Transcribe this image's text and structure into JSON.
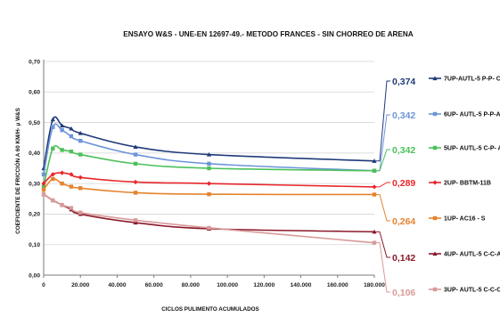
{
  "chart_data": {
    "type": "line",
    "title": "ENSAYO W&S - UNE-EN 12697-49.- METODO FRANCES -  SIN CHORREO DE ARENA",
    "xlabel": "CICLOS PULIMENTO ACUMULADOS",
    "ylabel": "COEFICIENTE DE FRICCIÓN A 60 KM/H- μ W&S",
    "xlim": [
      0,
      180000
    ],
    "ylim": [
      0,
      0.7
    ],
    "x_ticks": [
      0,
      20000,
      40000,
      60000,
      80000,
      100000,
      120000,
      140000,
      160000,
      180000
    ],
    "x_tick_labels": [
      "0",
      "20.000",
      "40.000",
      "60.000",
      "80.000",
      "100.000",
      "120.000",
      "140.000",
      "160.000",
      "180.000"
    ],
    "y_ticks": [
      0,
      0.1,
      0.2,
      0.3,
      0.4,
      0.5,
      0.6,
      0.7
    ],
    "y_tick_labels": [
      "0,00",
      "0,10",
      "0,20",
      "0,30",
      "0,40",
      "0,50",
      "0,60",
      "0,70"
    ],
    "grid": "horizontal",
    "legend_position": "right",
    "series": [
      {
        "name": "7UP-AUTL-5 P-P- C",
        "color": "#1f3a7a",
        "marker": "triangle",
        "end_label": "0,374",
        "points": [
          [
            0,
            0.35
          ],
          [
            5000,
            0.51
          ],
          [
            10000,
            0.49
          ],
          [
            15000,
            0.48
          ],
          [
            20000,
            0.465
          ],
          [
            50000,
            0.42
          ],
          [
            90000,
            0.395
          ],
          [
            180000,
            0.374
          ]
        ]
      },
      {
        "name": "6UP- AUTL-5 P-P-A",
        "color": "#6c95d8",
        "marker": "square",
        "end_label": "0,342",
        "points": [
          [
            0,
            0.33
          ],
          [
            5000,
            0.485
          ],
          [
            10000,
            0.475
          ],
          [
            15000,
            0.455
          ],
          [
            20000,
            0.44
          ],
          [
            50000,
            0.395
          ],
          [
            90000,
            0.365
          ],
          [
            180000,
            0.342
          ]
        ]
      },
      {
        "name": "5UP- AUTL-5 C-P- A",
        "color": "#4cc15a",
        "marker": "square",
        "end_label": "0,342",
        "points": [
          [
            0,
            0.29
          ],
          [
            5000,
            0.415
          ],
          [
            10000,
            0.41
          ],
          [
            15000,
            0.405
          ],
          [
            20000,
            0.395
          ],
          [
            50000,
            0.365
          ],
          [
            90000,
            0.35
          ],
          [
            180000,
            0.342
          ]
        ]
      },
      {
        "name": "2UP- BBTM-11B",
        "color": "#e8262b",
        "marker": "diamond",
        "end_label": "0,289",
        "points": [
          [
            0,
            0.3
          ],
          [
            5000,
            0.33
          ],
          [
            10000,
            0.335
          ],
          [
            15000,
            0.33
          ],
          [
            20000,
            0.32
          ],
          [
            50000,
            0.305
          ],
          [
            90000,
            0.3
          ],
          [
            180000,
            0.289
          ]
        ]
      },
      {
        "name": "1UP- AC16 - S",
        "color": "#e4832e",
        "marker": "square",
        "end_label": "0,264",
        "points": [
          [
            0,
            0.28
          ],
          [
            5000,
            0.315
          ],
          [
            10000,
            0.3
          ],
          [
            15000,
            0.29
          ],
          [
            20000,
            0.285
          ],
          [
            50000,
            0.27
          ],
          [
            90000,
            0.265
          ],
          [
            180000,
            0.264
          ]
        ]
      },
      {
        "name": "4UP- AUTL-5 C-C-A",
        "color": "#8b1a2b",
        "marker": "triangle",
        "end_label": "0,142",
        "points": [
          [
            0,
            0.265
          ],
          [
            5000,
            0.245
          ],
          [
            10000,
            0.23
          ],
          [
            15000,
            0.215
          ],
          [
            20000,
            0.2
          ],
          [
            50000,
            0.172
          ],
          [
            90000,
            0.152
          ],
          [
            180000,
            0.142
          ]
        ]
      },
      {
        "name": "3UP- AUTL-5 C-C-C",
        "color": "#d89a9a",
        "marker": "square",
        "end_label": "0,106",
        "points": [
          [
            0,
            0.265
          ],
          [
            5000,
            0.245
          ],
          [
            10000,
            0.23
          ],
          [
            15000,
            0.22
          ],
          [
            20000,
            0.205
          ],
          [
            50000,
            0.18
          ],
          [
            90000,
            0.155
          ],
          [
            180000,
            0.106
          ]
        ]
      }
    ]
  }
}
